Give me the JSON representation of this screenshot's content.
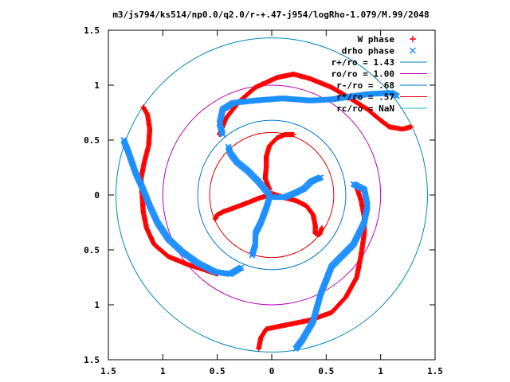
{
  "chart_data": {
    "type": "scatter",
    "title": "m3/js794/ks514/np0.0/q2.0/r-+.47-j954/logRho-1.079/M.99/2048",
    "xlim": [
      -1.5,
      1.5
    ],
    "ylim": [
      -1.5,
      1.5
    ],
    "x_ticks": [
      -1.5,
      -1,
      -0.5,
      0,
      0.5,
      1,
      1.5
    ],
    "y_ticks": [
      -1.5,
      -1,
      -0.5,
      0,
      0.5,
      1,
      1.5
    ],
    "x_tick_labels": [
      "1.5",
      "1",
      "0.5",
      "0",
      "0.5",
      "1",
      "1.5"
    ],
    "y_tick_labels": [
      "1.5",
      "1",
      "0.5",
      "0",
      "0.5",
      "1",
      "1.5"
    ],
    "grid": false,
    "legend_position": "top-right",
    "colors": {
      "w_phase": "#ff0000",
      "drho_phase": "#1e90ff",
      "r_plus": "#0088bb",
      "ro": "#bb00bb",
      "r_minus": "#0077cc",
      "r_star": "#dd0000",
      "rc": "#22bbbb"
    },
    "legend": [
      {
        "label": "W phase",
        "symbol": "+",
        "color": "#ff0000"
      },
      {
        "label": "drho phase",
        "symbol": "x",
        "color": "#1e90ff"
      },
      {
        "label": "r+/ro = 1.43",
        "symbol": "line",
        "color": "#0088bb"
      },
      {
        "label": "ro/ro = 1.00",
        "symbol": "line",
        "color": "#bb00bb"
      },
      {
        "label": "r-/ro = .68",
        "symbol": "line",
        "color": "#0077cc"
      },
      {
        "label": "r*/ro = .57",
        "symbol": "line",
        "color": "#dd0000"
      },
      {
        "label": "rc/ro = NaN",
        "symbol": "line",
        "color": "#22bbbb"
      }
    ],
    "circles": [
      {
        "name": "r+/ro = 1.43",
        "radius": 1.43,
        "color": "#0088bb"
      },
      {
        "name": "ro/ro = 1.00",
        "radius": 1.0,
        "color": "#bb00bb"
      },
      {
        "name": "r-/ro = .68",
        "radius": 0.68,
        "color": "#0077cc"
      },
      {
        "name": "r*/ro = .57",
        "radius": 0.57,
        "color": "#dd0000"
      }
    ],
    "series": [
      {
        "name": "W phase",
        "marker": "+",
        "color": "#ff0000",
        "curves": [
          [
            [
              -1.18,
              0.8
            ],
            [
              -1.14,
              0.73
            ],
            [
              -1.12,
              0.6
            ],
            [
              -1.13,
              0.45
            ],
            [
              -1.17,
              0.3
            ],
            [
              -1.2,
              0.15
            ],
            [
              -1.19,
              0.0
            ],
            [
              -1.18,
              -0.15
            ],
            [
              -1.15,
              -0.3
            ],
            [
              -1.08,
              -0.45
            ],
            [
              -0.95,
              -0.56
            ],
            [
              -0.78,
              -0.63
            ],
            [
              -0.62,
              -0.68
            ],
            [
              -0.5,
              -0.72
            ]
          ],
          [
            [
              -0.48,
              0.55
            ],
            [
              -0.42,
              0.7
            ],
            [
              -0.3,
              0.85
            ],
            [
              -0.15,
              0.98
            ],
            [
              0.05,
              1.07
            ],
            [
              0.2,
              1.1
            ],
            [
              0.35,
              1.06
            ],
            [
              0.55,
              0.98
            ],
            [
              0.72,
              0.88
            ],
            [
              0.88,
              0.78
            ],
            [
              1.0,
              0.68
            ],
            [
              1.08,
              0.62
            ],
            [
              1.2,
              0.6
            ],
            [
              1.28,
              0.62
            ]
          ],
          [
            [
              0.78,
              0.07
            ],
            [
              0.82,
              -0.05
            ],
            [
              0.85,
              -0.2
            ],
            [
              0.85,
              -0.35
            ],
            [
              0.82,
              -0.55
            ],
            [
              0.78,
              -0.75
            ],
            [
              0.68,
              -0.93
            ],
            [
              0.55,
              -1.07
            ],
            [
              0.35,
              -1.14
            ],
            [
              0.15,
              -1.18
            ],
            [
              -0.05,
              -1.22
            ],
            [
              -0.1,
              -1.3
            ],
            [
              -0.12,
              -1.4
            ]
          ],
          [
            [
              -0.02,
              0.02
            ],
            [
              0.1,
              -0.02
            ],
            [
              0.22,
              -0.05
            ],
            [
              0.32,
              -0.1
            ],
            [
              0.38,
              -0.18
            ],
            [
              0.4,
              -0.28
            ],
            [
              0.4,
              -0.35
            ],
            [
              0.44,
              -0.36
            ],
            [
              0.46,
              -0.3
            ]
          ],
          [
            [
              -0.02,
              0.05
            ],
            [
              -0.06,
              0.15
            ],
            [
              -0.05,
              0.25
            ],
            [
              -0.05,
              0.35
            ],
            [
              -0.02,
              0.45
            ],
            [
              0.05,
              0.52
            ],
            [
              0.12,
              0.55
            ],
            [
              0.2,
              0.55
            ]
          ],
          [
            [
              -0.02,
              0.0
            ],
            [
              -0.12,
              -0.03
            ],
            [
              -0.22,
              -0.07
            ],
            [
              -0.3,
              -0.1
            ],
            [
              -0.38,
              -0.13
            ],
            [
              -0.44,
              -0.15
            ],
            [
              -0.5,
              -0.18
            ],
            [
              -0.52,
              -0.22
            ]
          ]
        ]
      },
      {
        "name": "drho phase",
        "marker": "x",
        "color": "#1e90ff",
        "curves": [
          [
            [
              -1.36,
              0.5
            ],
            [
              -1.32,
              0.4
            ],
            [
              -1.25,
              0.2
            ],
            [
              -1.18,
              0.05
            ],
            [
              -1.12,
              -0.1
            ],
            [
              -1.05,
              -0.25
            ],
            [
              -0.95,
              -0.4
            ],
            [
              -0.82,
              -0.52
            ],
            [
              -0.68,
              -0.62
            ],
            [
              -0.52,
              -0.7
            ],
            [
              -0.38,
              -0.72
            ],
            [
              -0.28,
              -0.66
            ]
          ],
          [
            [
              -0.45,
              0.55
            ],
            [
              -0.48,
              0.65
            ],
            [
              -0.45,
              0.78
            ],
            [
              -0.35,
              0.84
            ],
            [
              -0.15,
              0.86
            ],
            [
              0.1,
              0.88
            ],
            [
              0.35,
              0.86
            ],
            [
              0.55,
              0.87
            ],
            [
              0.75,
              0.9
            ],
            [
              0.9,
              0.92
            ],
            [
              1.1,
              0.93
            ],
            [
              1.15,
              0.9
            ]
          ],
          [
            [
              0.75,
              0.1
            ],
            [
              0.85,
              0.05
            ],
            [
              0.88,
              -0.1
            ],
            [
              0.85,
              -0.25
            ],
            [
              0.75,
              -0.45
            ],
            [
              0.55,
              -0.65
            ],
            [
              0.45,
              -0.9
            ],
            [
              0.38,
              -1.15
            ],
            [
              0.28,
              -1.32
            ],
            [
              0.22,
              -1.4
            ]
          ],
          [
            [
              -0.02,
              0.0
            ],
            [
              -0.12,
              0.12
            ],
            [
              -0.22,
              0.22
            ],
            [
              -0.32,
              0.3
            ],
            [
              -0.38,
              0.38
            ],
            [
              -0.4,
              0.44
            ]
          ],
          [
            [
              0.0,
              -0.02
            ],
            [
              0.12,
              -0.02
            ],
            [
              0.22,
              0.02
            ],
            [
              0.3,
              0.06
            ],
            [
              0.36,
              0.12
            ],
            [
              0.4,
              0.14
            ],
            [
              0.45,
              0.16
            ]
          ],
          [
            [
              -0.02,
              -0.02
            ],
            [
              -0.05,
              -0.12
            ],
            [
              -0.1,
              -0.25
            ],
            [
              -0.15,
              -0.35
            ],
            [
              -0.15,
              -0.45
            ],
            [
              -0.18,
              -0.55
            ]
          ]
        ]
      }
    ]
  }
}
